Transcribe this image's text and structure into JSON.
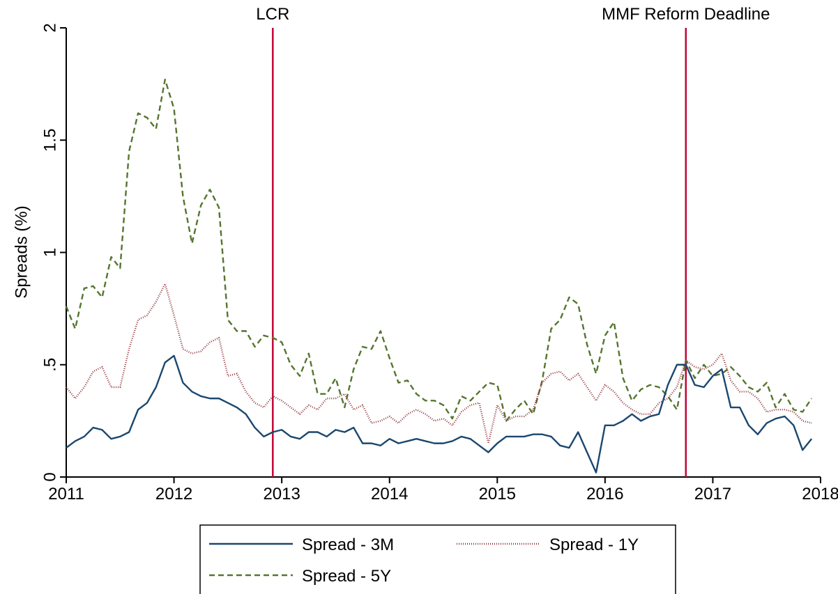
{
  "chart_data": {
    "type": "line",
    "y_label": "Spreads (%)",
    "x": [
      2011,
      2011.083,
      2011.167,
      2011.25,
      2011.333,
      2011.417,
      2011.5,
      2011.583,
      2011.667,
      2011.75,
      2011.833,
      2011.917,
      2012,
      2012.083,
      2012.167,
      2012.25,
      2012.333,
      2012.417,
      2012.5,
      2012.583,
      2012.667,
      2012.75,
      2012.833,
      2012.917,
      2013,
      2013.083,
      2013.167,
      2013.25,
      2013.333,
      2013.417,
      2013.5,
      2013.583,
      2013.667,
      2013.75,
      2013.833,
      2013.917,
      2014,
      2014.083,
      2014.167,
      2014.25,
      2014.333,
      2014.417,
      2014.5,
      2014.583,
      2014.667,
      2014.75,
      2014.833,
      2014.917,
      2015,
      2015.083,
      2015.167,
      2015.25,
      2015.333,
      2015.417,
      2015.5,
      2015.583,
      2015.667,
      2015.75,
      2015.833,
      2015.917,
      2016,
      2016.083,
      2016.167,
      2016.25,
      2016.333,
      2016.417,
      2016.5,
      2016.583,
      2016.667,
      2016.75,
      2016.833,
      2016.917,
      2017,
      2017.083,
      2017.167,
      2017.25,
      2017.333,
      2017.417,
      2017.5,
      2017.583,
      2017.667,
      2017.75,
      2017.833,
      2017.917
    ],
    "series": [
      {
        "name": "Spread - 3M",
        "color": "#1a476f",
        "dash": "none",
        "values": [
          0.13,
          0.16,
          0.18,
          0.22,
          0.21,
          0.17,
          0.18,
          0.2,
          0.3,
          0.33,
          0.4,
          0.51,
          0.54,
          0.42,
          0.38,
          0.36,
          0.35,
          0.35,
          0.33,
          0.31,
          0.28,
          0.22,
          0.18,
          0.2,
          0.21,
          0.18,
          0.17,
          0.2,
          0.2,
          0.18,
          0.21,
          0.2,
          0.22,
          0.15,
          0.15,
          0.14,
          0.17,
          0.15,
          0.16,
          0.17,
          0.16,
          0.15,
          0.15,
          0.16,
          0.18,
          0.17,
          0.14,
          0.11,
          0.15,
          0.18,
          0.18,
          0.18,
          0.19,
          0.19,
          0.18,
          0.14,
          0.13,
          0.2,
          0.11,
          0.02,
          0.23,
          0.23,
          0.25,
          0.28,
          0.25,
          0.27,
          0.28,
          0.41,
          0.5,
          0.5,
          0.41,
          0.4,
          0.45,
          0.48,
          0.31,
          0.31,
          0.23,
          0.19,
          0.24,
          0.26,
          0.27,
          0.23,
          0.12,
          0.17
        ]
      },
      {
        "name": "Spread - 1Y",
        "color": "#90353b",
        "dash": "1,2",
        "values": [
          0.4,
          0.35,
          0.4,
          0.47,
          0.49,
          0.4,
          0.4,
          0.57,
          0.7,
          0.72,
          0.78,
          0.86,
          0.72,
          0.57,
          0.55,
          0.56,
          0.6,
          0.62,
          0.45,
          0.46,
          0.38,
          0.33,
          0.31,
          0.36,
          0.34,
          0.31,
          0.28,
          0.32,
          0.3,
          0.35,
          0.35,
          0.37,
          0.3,
          0.32,
          0.24,
          0.25,
          0.27,
          0.24,
          0.28,
          0.3,
          0.28,
          0.25,
          0.26,
          0.23,
          0.29,
          0.32,
          0.33,
          0.15,
          0.32,
          0.25,
          0.27,
          0.27,
          0.3,
          0.42,
          0.46,
          0.47,
          0.43,
          0.46,
          0.4,
          0.34,
          0.41,
          0.38,
          0.33,
          0.3,
          0.28,
          0.28,
          0.33,
          0.35,
          0.4,
          0.52,
          0.49,
          0.48,
          0.5,
          0.55,
          0.43,
          0.38,
          0.38,
          0.35,
          0.29,
          0.3,
          0.3,
          0.29,
          0.25,
          0.24
        ]
      },
      {
        "name": "Spread - 5Y",
        "color": "#55752f",
        "dash": "8,5",
        "values": [
          0.76,
          0.66,
          0.84,
          0.85,
          0.8,
          0.98,
          0.93,
          1.45,
          1.62,
          1.6,
          1.55,
          1.77,
          1.64,
          1.25,
          1.04,
          1.21,
          1.28,
          1.2,
          0.7,
          0.65,
          0.65,
          0.58,
          0.63,
          0.62,
          0.6,
          0.5,
          0.45,
          0.55,
          0.37,
          0.37,
          0.44,
          0.31,
          0.48,
          0.58,
          0.57,
          0.65,
          0.53,
          0.42,
          0.43,
          0.37,
          0.34,
          0.34,
          0.32,
          0.26,
          0.36,
          0.34,
          0.38,
          0.42,
          0.41,
          0.25,
          0.3,
          0.34,
          0.28,
          0.43,
          0.66,
          0.7,
          0.8,
          0.77,
          0.59,
          0.46,
          0.63,
          0.69,
          0.44,
          0.34,
          0.39,
          0.41,
          0.4,
          0.36,
          0.3,
          0.52,
          0.44,
          0.5,
          0.45,
          0.46,
          0.49,
          0.45,
          0.4,
          0.38,
          0.42,
          0.31,
          0.37,
          0.3,
          0.29,
          0.35
        ]
      }
    ],
    "xlim": [
      2011,
      2018
    ],
    "xticks": [
      2011,
      2012,
      2013,
      2014,
      2015,
      2016,
      2017,
      2018
    ],
    "ylim": [
      0,
      2
    ],
    "yticks": [
      0,
      {
        "value": 0.5,
        "label": ".5"
      },
      1,
      1.5,
      2
    ],
    "vlines": [
      {
        "x": 2012.917,
        "label": "LCR"
      },
      {
        "x": 2016.75,
        "label": "MMF Reform Deadline"
      }
    ],
    "vline_color": "#c10534",
    "grid": false
  }
}
